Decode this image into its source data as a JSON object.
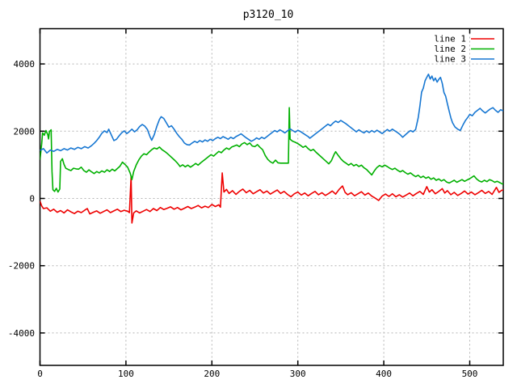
{
  "title": "p3120_10",
  "colors": {
    "background": "#ffffff",
    "border": "#000000",
    "grid": "#b4b4b4",
    "text": "#000000",
    "line1": "#ee0000",
    "line2": "#00b000",
    "line3": "#1777d2"
  },
  "legend": {
    "entries": [
      {
        "label": "line 1",
        "color": "#ee0000"
      },
      {
        "label": "line 2",
        "color": "#00b000"
      },
      {
        "label": "line 3",
        "color": "#1777d2"
      }
    ]
  },
  "chart_data": {
    "type": "line",
    "title": "p3120_10",
    "xlabel": "",
    "ylabel": "",
    "xlim": [
      0,
      540
    ],
    "ylim": [
      -5000,
      5000
    ],
    "x_ticks": [
      0,
      100,
      200,
      300,
      400,
      500
    ],
    "y_ticks": [
      -4000,
      -2000,
      0,
      2000,
      4000
    ],
    "grid": true,
    "legend_position": "top-right-inside",
    "series": [
      {
        "name": "line 1",
        "color": "#ee0000",
        "points": [
          0,
          -80,
          2,
          -220,
          4,
          -300,
          8,
          -280,
          12,
          -380,
          16,
          -320,
          20,
          -410,
          24,
          -360,
          28,
          -430,
          32,
          -340,
          36,
          -400,
          40,
          -450,
          44,
          -380,
          48,
          -420,
          52,
          -350,
          55,
          -300,
          58,
          -460,
          62,
          -410,
          66,
          -370,
          70,
          -440,
          74,
          -390,
          78,
          -340,
          82,
          -420,
          86,
          -370,
          90,
          -320,
          94,
          -390,
          98,
          -350,
          102,
          -380,
          104,
          -420,
          106,
          660,
          107,
          -730,
          109,
          -430,
          112,
          -370,
          116,
          -430,
          120,
          -380,
          124,
          -330,
          128,
          -390,
          132,
          -300,
          136,
          -360,
          140,
          -270,
          144,
          -330,
          148,
          -290,
          152,
          -250,
          156,
          -320,
          160,
          -270,
          164,
          -340,
          168,
          -290,
          172,
          -240,
          176,
          -300,
          180,
          -260,
          184,
          -210,
          188,
          -280,
          192,
          -230,
          196,
          -270,
          200,
          -180,
          204,
          -240,
          208,
          -190,
          210,
          -260,
          212,
          760,
          214,
          190,
          217,
          270,
          220,
          150,
          224,
          230,
          228,
          120,
          232,
          210,
          236,
          280,
          240,
          170,
          244,
          240,
          248,
          140,
          252,
          200,
          256,
          260,
          260,
          160,
          264,
          220,
          268,
          130,
          272,
          190,
          276,
          250,
          280,
          150,
          284,
          210,
          288,
          120,
          292,
          50,
          296,
          140,
          300,
          190,
          304,
          100,
          308,
          160,
          312,
          80,
          316,
          150,
          320,
          210,
          324,
          110,
          328,
          170,
          332,
          90,
          336,
          150,
          340,
          220,
          344,
          130,
          348,
          270,
          352,
          370,
          355,
          180,
          358,
          110,
          362,
          170,
          366,
          80,
          370,
          140,
          374,
          200,
          378,
          100,
          382,
          160,
          386,
          70,
          390,
          10,
          394,
          -60,
          398,
          70,
          402,
          130,
          406,
          60,
          410,
          140,
          414,
          50,
          418,
          110,
          422,
          40,
          426,
          100,
          430,
          160,
          434,
          80,
          438,
          150,
          442,
          210,
          446,
          120,
          450,
          350,
          453,
          190,
          456,
          260,
          460,
          140,
          464,
          210,
          468,
          290,
          471,
          160,
          474,
          230,
          478,
          110,
          482,
          180,
          486,
          90,
          490,
          150,
          494,
          220,
          498,
          130,
          502,
          190,
          506,
          110,
          510,
          170,
          514,
          240,
          518,
          150,
          522,
          210,
          526,
          120,
          531,
          330,
          534,
          180,
          537,
          240,
          540,
          260
        ]
      },
      {
        "name": "line 2",
        "color": "#00b000",
        "points": [
          0,
          1150,
          2,
          1620,
          3,
          1950,
          5,
          1880,
          7,
          2020,
          9,
          1900,
          10,
          1770,
          11,
          1990,
          13,
          2040,
          14,
          800,
          15,
          260,
          17,
          210,
          19,
          300,
          21,
          190,
          23,
          280,
          24,
          1100,
          26,
          1180,
          28,
          1010,
          30,
          900,
          33,
          860,
          36,
          830,
          39,
          900,
          42,
          880,
          45,
          870,
          48,
          930,
          51,
          830,
          54,
          780,
          57,
          850,
          60,
          790,
          63,
          740,
          66,
          800,
          69,
          760,
          72,
          820,
          75,
          780,
          78,
          850,
          81,
          800,
          84,
          870,
          87,
          820,
          90,
          890,
          93,
          960,
          96,
          1080,
          99,
          1010,
          102,
          930,
          105,
          750,
          107,
          560,
          109,
          800,
          112,
          1000,
          115,
          1150,
          118,
          1260,
          121,
          1330,
          124,
          1300,
          127,
          1380,
          130,
          1450,
          133,
          1500,
          136,
          1470,
          139,
          1530,
          142,
          1450,
          145,
          1400,
          148,
          1340,
          151,
          1270,
          154,
          1200,
          157,
          1130,
          160,
          1050,
          163,
          950,
          166,
          1000,
          169,
          940,
          172,
          990,
          175,
          930,
          178,
          980,
          181,
          1040,
          184,
          990,
          187,
          1060,
          190,
          1120,
          193,
          1180,
          196,
          1240,
          199,
          1300,
          202,
          1260,
          205,
          1330,
          208,
          1400,
          211,
          1360,
          214,
          1440,
          217,
          1500,
          220,
          1460,
          223,
          1530,
          226,
          1560,
          229,
          1590,
          232,
          1540,
          235,
          1620,
          238,
          1660,
          241,
          1600,
          244,
          1650,
          247,
          1560,
          250,
          1540,
          253,
          1600,
          256,
          1520,
          259,
          1450,
          262,
          1280,
          265,
          1160,
          268,
          1090,
          271,
          1050,
          274,
          1140,
          277,
          1060,
          280,
          1050,
          283,
          1050,
          286,
          1050,
          289,
          1050,
          290,
          2700,
          291,
          1760,
          294,
          1700,
          297,
          1670,
          300,
          1630,
          303,
          1580,
          306,
          1520,
          309,
          1560,
          312,
          1480,
          315,
          1420,
          318,
          1460,
          321,
          1380,
          324,
          1310,
          327,
          1240,
          330,
          1170,
          333,
          1100,
          336,
          1030,
          339,
          1120,
          342,
          1300,
          344,
          1390,
          347,
          1280,
          350,
          1180,
          353,
          1100,
          356,
          1050,
          359,
          990,
          362,
          1040,
          365,
          970,
          368,
          1010,
          371,
          950,
          374,
          990,
          377,
          910,
          380,
          860,
          383,
          780,
          386,
          700,
          389,
          820,
          392,
          920,
          395,
          980,
          398,
          940,
          401,
          990,
          404,
          950,
          407,
          900,
          410,
          860,
          413,
          900,
          416,
          840,
          419,
          790,
          422,
          830,
          425,
          770,
          428,
          720,
          431,
          760,
          434,
          700,
          437,
          650,
          440,
          690,
          443,
          620,
          446,
          660,
          449,
          600,
          452,
          640,
          455,
          570,
          458,
          610,
          461,
          540,
          464,
          580,
          467,
          520,
          470,
          560,
          473,
          490,
          476,
          460,
          479,
          500,
          482,
          540,
          485,
          480,
          488,
          520,
          491,
          560,
          494,
          510,
          497,
          550,
          500,
          590,
          503,
          640,
          505,
          670,
          508,
          580,
          511,
          520,
          514,
          490,
          517,
          540,
          520,
          500,
          523,
          560,
          526,
          530,
          529,
          480,
          532,
          510,
          535,
          470,
          538,
          430,
          540,
          460
        ]
      },
      {
        "name": "line 3",
        "color": "#1777d2",
        "points": [
          0,
          1430,
          4,
          1480,
          8,
          1350,
          12,
          1440,
          16,
          1400,
          20,
          1460,
          24,
          1420,
          28,
          1480,
          32,
          1440,
          36,
          1500,
          40,
          1460,
          44,
          1520,
          48,
          1480,
          52,
          1540,
          56,
          1500,
          60,
          1570,
          63,
          1640,
          66,
          1720,
          69,
          1820,
          72,
          1940,
          75,
          2010,
          78,
          1960,
          80,
          2060,
          83,
          1890,
          86,
          1720,
          89,
          1760,
          92,
          1860,
          95,
          1950,
          98,
          2010,
          101,
          1930,
          104,
          1990,
          107,
          2060,
          110,
          1980,
          113,
          2040,
          116,
          2140,
          119,
          2200,
          122,
          2150,
          125,
          2050,
          128,
          1840,
          130,
          1730,
          133,
          1900,
          136,
          2150,
          139,
          2350,
          141,
          2430,
          144,
          2380,
          147,
          2250,
          150,
          2120,
          153,
          2160,
          156,
          2060,
          159,
          1940,
          162,
          1840,
          165,
          1760,
          168,
          1650,
          171,
          1600,
          174,
          1590,
          177,
          1650,
          180,
          1700,
          183,
          1660,
          186,
          1720,
          189,
          1680,
          192,
          1740,
          195,
          1700,
          198,
          1760,
          201,
          1720,
          204,
          1780,
          207,
          1820,
          210,
          1780,
          213,
          1840,
          216,
          1800,
          219,
          1760,
          222,
          1820,
          225,
          1780,
          228,
          1840,
          231,
          1880,
          234,
          1920,
          237,
          1860,
          240,
          1800,
          243,
          1750,
          246,
          1700,
          249,
          1740,
          252,
          1800,
          255,
          1760,
          258,
          1820,
          261,
          1780,
          264,
          1840,
          267,
          1900,
          270,
          1960,
          273,
          2020,
          276,
          1980,
          279,
          2040,
          282,
          2000,
          285,
          1950,
          288,
          2010,
          291,
          2070,
          294,
          2020,
          297,
          1970,
          300,
          2030,
          303,
          1990,
          306,
          1940,
          309,
          1890,
          312,
          1840,
          314,
          1790,
          317,
          1850,
          320,
          1910,
          323,
          1970,
          326,
          2030,
          329,
          2090,
          332,
          2150,
          335,
          2210,
          338,
          2160,
          341,
          2240,
          344,
          2300,
          347,
          2260,
          350,
          2320,
          353,
          2270,
          356,
          2220,
          359,
          2160,
          362,
          2100,
          365,
          2040,
          368,
          1980,
          371,
          2040,
          374,
          1990,
          377,
          1950,
          380,
          2010,
          383,
          1960,
          386,
          2020,
          389,
          1970,
          392,
          2030,
          395,
          1980,
          398,
          1930,
          401,
          1990,
          404,
          2050,
          407,
          2000,
          410,
          2060,
          413,
          2010,
          416,
          1960,
          419,
          1900,
          422,
          1820,
          425,
          1890,
          428,
          1960,
          431,
          2020,
          434,
          1980,
          437,
          2050,
          440,
          2400,
          442,
          2750,
          444,
          3160,
          446,
          3280,
          448,
          3500,
          450,
          3600,
          452,
          3695,
          454,
          3550,
          456,
          3640,
          458,
          3500,
          460,
          3580,
          462,
          3460,
          464,
          3540,
          466,
          3600,
          468,
          3420,
          470,
          3150,
          472,
          3040,
          474,
          2820,
          476,
          2600,
          478,
          2400,
          480,
          2250,
          483,
          2120,
          486,
          2060,
          489,
          2020,
          492,
          2180,
          495,
          2320,
          498,
          2420,
          500,
          2500,
          503,
          2460,
          506,
          2560,
          509,
          2620,
          512,
          2680,
          515,
          2600,
          518,
          2540,
          521,
          2600,
          524,
          2660,
          527,
          2700,
          530,
          2620,
          533,
          2560,
          536,
          2640,
          539,
          2600
        ]
      }
    ]
  }
}
